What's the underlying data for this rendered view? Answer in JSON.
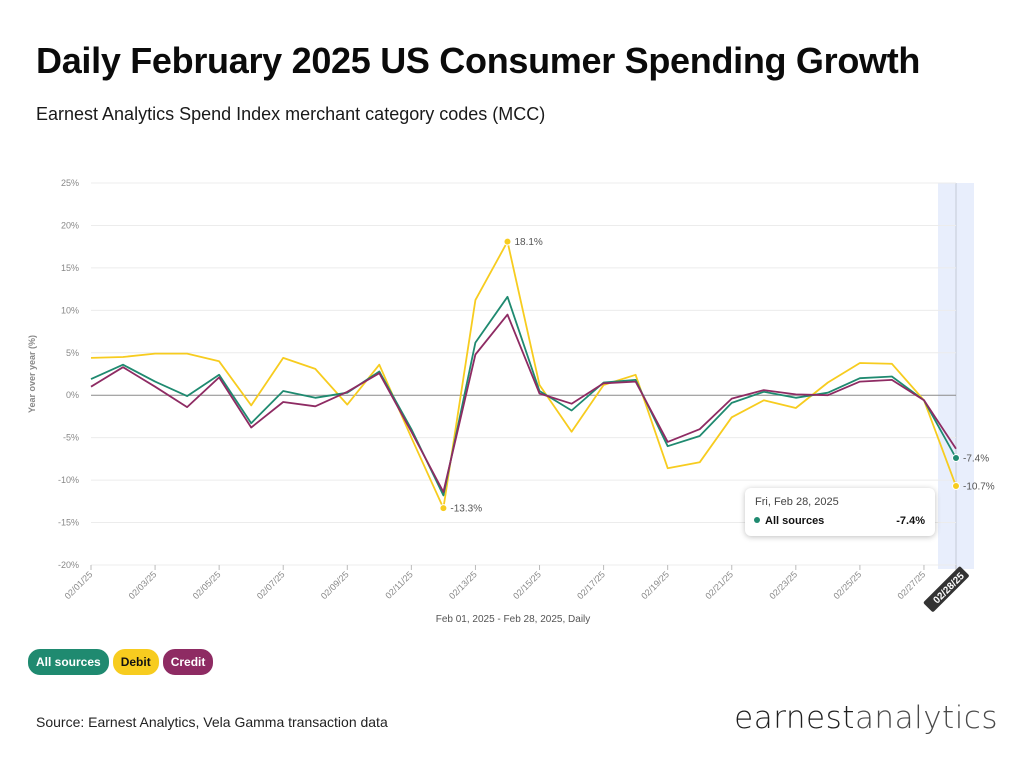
{
  "header": {
    "title": "Daily February 2025 US Consumer Spending Growth",
    "subtitle": "Earnest Analytics Spend Index merchant category codes (MCC)"
  },
  "footer": {
    "source": "Source: Earnest Analytics, Vela Gamma transaction data",
    "logo_part1": "earnest",
    "logo_part2": "analytics"
  },
  "legend": [
    {
      "label": "All sources",
      "color": "#1f8a70",
      "text_color": "#ffffff"
    },
    {
      "label": "Debit",
      "color": "#f7cc1f",
      "text_color": "#111111"
    },
    {
      "label": "Credit",
      "color": "#8e2b63",
      "text_color": "#ffffff"
    }
  ],
  "tooltip": {
    "date": "Fri, Feb 28, 2025",
    "series": "All sources",
    "value": "-7.4%"
  },
  "chart_data": {
    "type": "line",
    "title": "Daily February 2025 US Consumer Spending Growth",
    "subtitle": "Earnest Analytics Spend Index merchant category codes (MCC)",
    "xlabel": "Feb 01, 2025 - Feb 28, 2025, Daily",
    "ylabel": "Year over year (%)",
    "ylim": [
      -20,
      25
    ],
    "yticks": [
      25,
      20,
      15,
      10,
      5,
      0,
      -5,
      -10,
      -15,
      -20
    ],
    "ytick_labels": [
      "25%",
      "20%",
      "15%",
      "10%",
      "5%",
      "0%",
      "-5%",
      "-10%",
      "-15%",
      "-20%"
    ],
    "x": [
      "02/01/25",
      "02/02/25",
      "02/03/25",
      "02/04/25",
      "02/05/25",
      "02/06/25",
      "02/07/25",
      "02/08/25",
      "02/09/25",
      "02/10/25",
      "02/11/25",
      "02/12/25",
      "02/13/25",
      "02/14/25",
      "02/15/25",
      "02/16/25",
      "02/17/25",
      "02/18/25",
      "02/19/25",
      "02/20/25",
      "02/21/25",
      "02/22/25",
      "02/23/25",
      "02/24/25",
      "02/25/25",
      "02/26/25",
      "02/27/25",
      "02/28/25"
    ],
    "xtick_labels": [
      "02/01/25",
      "02/03/25",
      "02/05/25",
      "02/07/25",
      "02/09/25",
      "02/11/25",
      "02/13/25",
      "02/15/25",
      "02/17/25",
      "02/19/25",
      "02/21/25",
      "02/23/25",
      "02/25/25",
      "02/27/25",
      "02/28/25"
    ],
    "highlight_x": "02/28/25",
    "grid": true,
    "legend_position": "bottom-left",
    "series": [
      {
        "name": "Debit",
        "color": "#f7cc1f",
        "values": [
          4.4,
          4.5,
          4.9,
          4.9,
          4.0,
          -1.2,
          4.4,
          3.1,
          -1.1,
          3.6,
          -5.0,
          -13.3,
          11.2,
          18.1,
          1.2,
          -4.3,
          1.2,
          2.4,
          -8.6,
          -7.9,
          -2.6,
          -0.6,
          -1.5,
          1.5,
          3.8,
          3.7,
          -0.6,
          -10.7
        ]
      },
      {
        "name": "All sources",
        "color": "#1f8a70",
        "values": [
          1.9,
          3.6,
          1.6,
          -0.1,
          2.4,
          -3.3,
          0.5,
          -0.3,
          0.3,
          2.8,
          -4.0,
          -11.8,
          6.2,
          11.6,
          0.5,
          -1.8,
          1.5,
          1.8,
          -6.0,
          -4.8,
          -0.9,
          0.4,
          -0.3,
          0.3,
          2.0,
          2.2,
          -0.6,
          -7.4
        ]
      },
      {
        "name": "Credit",
        "color": "#8e2b63",
        "values": [
          1.0,
          3.3,
          1.0,
          -1.4,
          2.1,
          -3.8,
          -0.8,
          -1.3,
          0.4,
          2.6,
          -4.3,
          -11.4,
          4.8,
          9.5,
          0.2,
          -1.0,
          1.4,
          1.6,
          -5.5,
          -4.0,
          -0.4,
          0.6,
          0.1,
          0.0,
          1.6,
          1.8,
          -0.6,
          -6.3
        ]
      }
    ],
    "annotations": [
      {
        "series": "Debit",
        "x": "02/12/25",
        "text": "-13.3%"
      },
      {
        "series": "Debit",
        "x": "02/14/25",
        "text": "18.1%"
      },
      {
        "series": "All sources",
        "x": "02/28/25",
        "text": "-7.4%"
      },
      {
        "series": "Debit",
        "x": "02/28/25",
        "text": "-10.7%"
      }
    ]
  }
}
